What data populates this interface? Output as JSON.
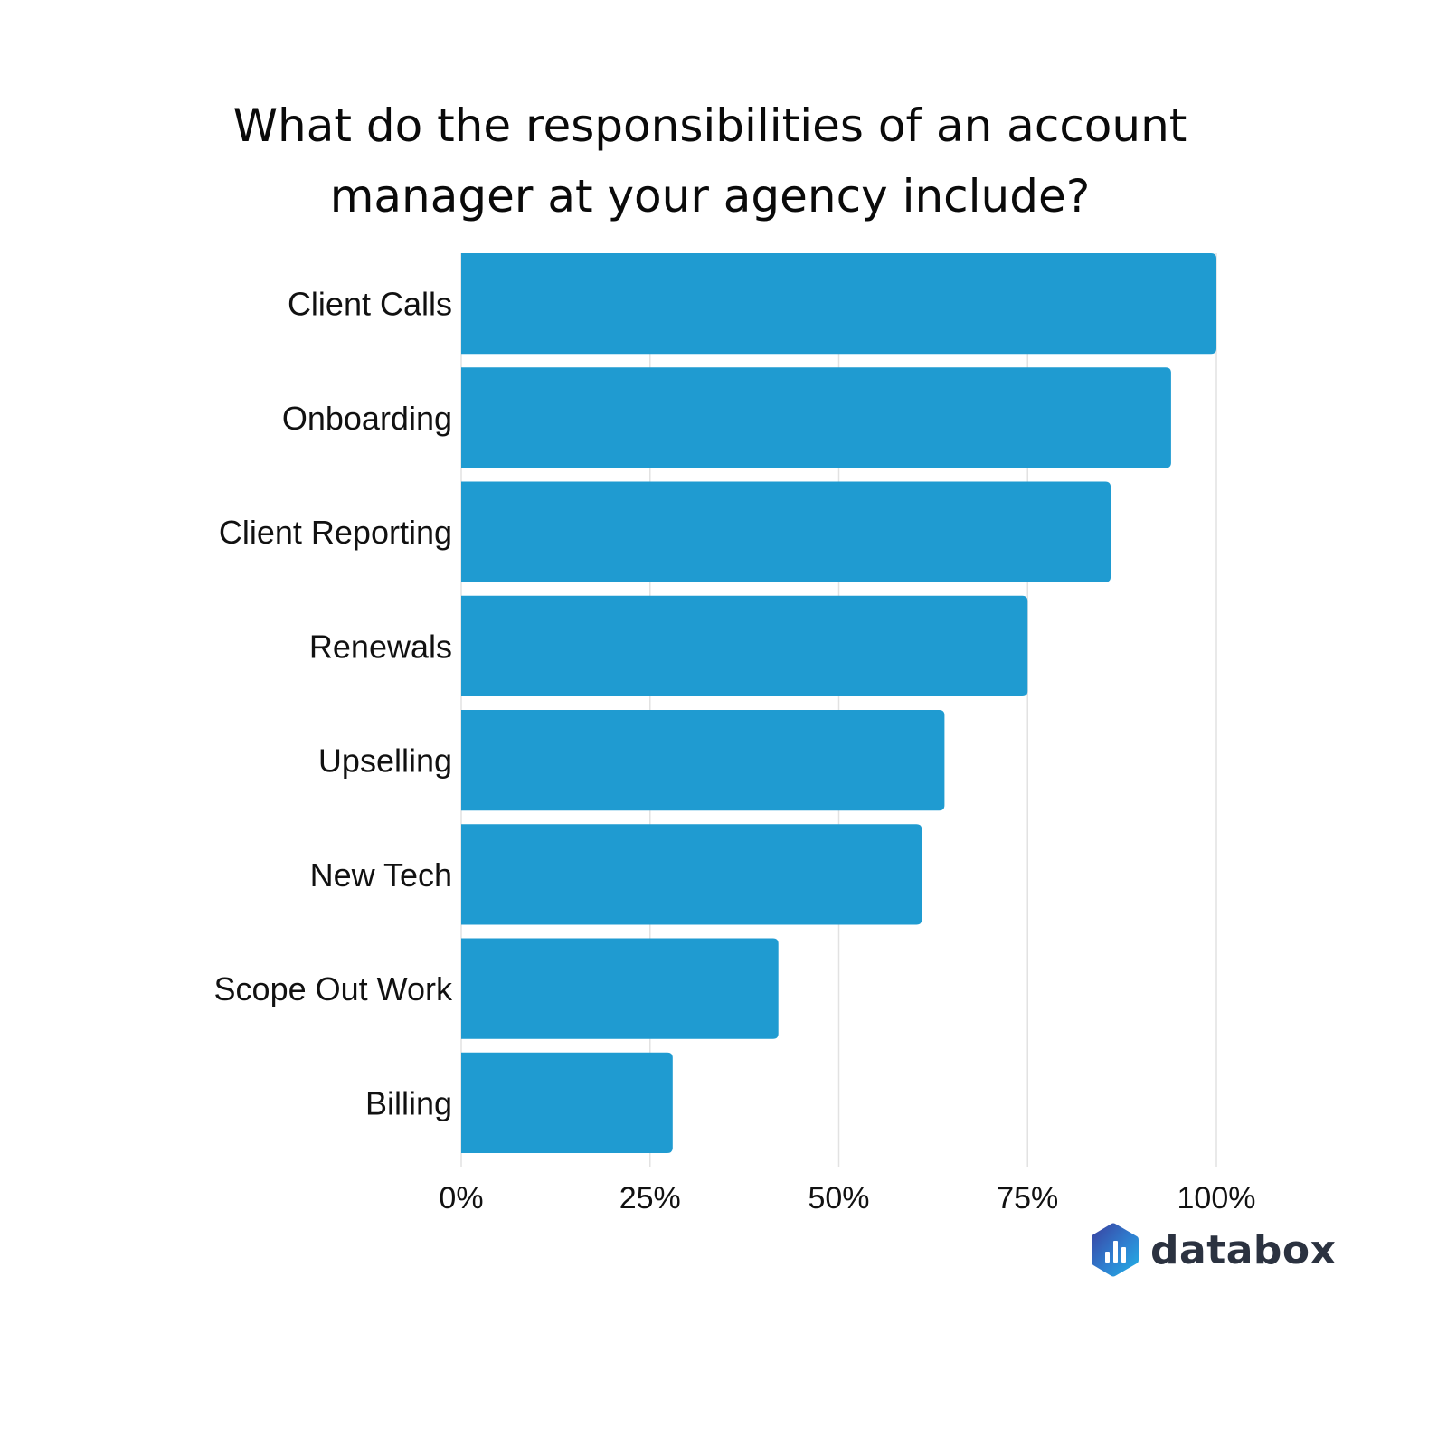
{
  "chart_data": {
    "type": "bar",
    "orientation": "horizontal",
    "title": "What do the responsibilities of an account manager at your agency include?",
    "categories": [
      "Client Calls",
      "Onboarding",
      "Client Reporting",
      "Renewals",
      "Upselling",
      "New Tech",
      "Scope Out Work",
      "Billing"
    ],
    "values": [
      100,
      94,
      86,
      75,
      64,
      61,
      42,
      28
    ],
    "x_ticks": [
      "0%",
      "25%",
      "50%",
      "75%",
      "100%"
    ],
    "x_tick_values": [
      0,
      25,
      50,
      75,
      100
    ],
    "xlim": [
      0,
      100
    ],
    "xlabel": "",
    "ylabel": "",
    "grid": "vertical",
    "legend": "none",
    "bar_color": "#1f9bd1",
    "grid_color": "#e2e2e2"
  },
  "brand": {
    "logo_text": "databox",
    "logo_icon": "databox-logo-icon"
  }
}
